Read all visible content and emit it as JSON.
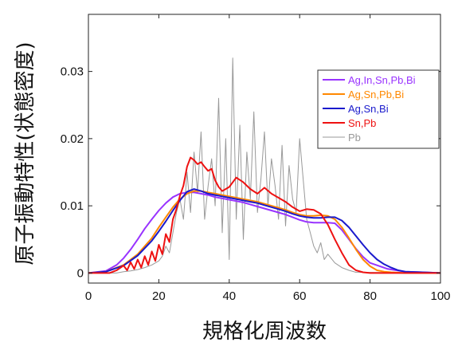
{
  "chart_data": {
    "type": "line",
    "xlabel": "規格化周波数",
    "ylabel": "原子振動特性(状態密度)",
    "xlim": [
      0,
      100
    ],
    "ylim": [
      -0.0015,
      0.0385
    ],
    "x_ticks": [
      0,
      20,
      40,
      60,
      80,
      100
    ],
    "y_ticks": [
      0,
      0.01,
      0.02,
      0.03
    ],
    "x_tick_labels": [
      "0",
      "20",
      "40",
      "60",
      "80",
      "100"
    ],
    "y_tick_labels": [
      "0",
      "0.01",
      "0.02",
      "0.03"
    ],
    "grid": false,
    "legend_position": "top-right",
    "series": [
      {
        "name": "Ag,In,Sn,Pb,Bi",
        "color": "#9933ff",
        "x": [
          0,
          5,
          8,
          10,
          12,
          14,
          16,
          18,
          20,
          22,
          24,
          26,
          28,
          30,
          32,
          34,
          36,
          38,
          40,
          42,
          44,
          46,
          48,
          50,
          52,
          54,
          56,
          58,
          60,
          62,
          64,
          66,
          68,
          70,
          72,
          74,
          76,
          78,
          80,
          85,
          90,
          95,
          100
        ],
        "y": [
          0,
          0.0003,
          0.0012,
          0.0022,
          0.0035,
          0.005,
          0.0066,
          0.008,
          0.0093,
          0.0104,
          0.0113,
          0.0118,
          0.012,
          0.012,
          0.0118,
          0.0116,
          0.0113,
          0.0111,
          0.0109,
          0.0107,
          0.0105,
          0.0102,
          0.0099,
          0.0096,
          0.0093,
          0.009,
          0.0087,
          0.0083,
          0.0079,
          0.0076,
          0.0075,
          0.0075,
          0.0075,
          0.0074,
          0.0064,
          0.005,
          0.0036,
          0.0024,
          0.0015,
          0.0006,
          0.0002,
          0.0001,
          0
        ]
      },
      {
        "name": "Ag,Sn,Pb,Bi",
        "color": "#ff8800",
        "x": [
          0,
          5,
          10,
          14,
          18,
          20,
          22,
          24,
          26,
          28,
          30,
          32,
          34,
          36,
          38,
          40,
          42,
          44,
          46,
          48,
          50,
          52,
          54,
          56,
          58,
          60,
          62,
          64,
          66,
          68,
          70,
          72,
          74,
          76,
          78,
          80,
          82,
          84,
          86,
          90,
          100
        ],
        "y": [
          0,
          0.0002,
          0.0012,
          0.0028,
          0.0052,
          0.0068,
          0.0083,
          0.0098,
          0.011,
          0.0118,
          0.0122,
          0.0122,
          0.012,
          0.0118,
          0.0116,
          0.0114,
          0.0112,
          0.011,
          0.0108,
          0.0106,
          0.0103,
          0.01,
          0.0097,
          0.0094,
          0.009,
          0.0087,
          0.0085,
          0.0085,
          0.0086,
          0.0085,
          0.008,
          0.0068,
          0.0052,
          0.0035,
          0.002,
          0.001,
          0.0004,
          0.0002,
          0.0001,
          0,
          0
        ]
      },
      {
        "name": "Ag,Sn,Bi",
        "color": "#1a1acc",
        "x": [
          0,
          5,
          10,
          14,
          18,
          20,
          22,
          24,
          26,
          28,
          30,
          32,
          34,
          36,
          38,
          40,
          42,
          44,
          46,
          48,
          50,
          52,
          54,
          56,
          58,
          60,
          62,
          64,
          66,
          68,
          70,
          72,
          74,
          76,
          78,
          80,
          82,
          84,
          86,
          88,
          90,
          95,
          100
        ],
        "y": [
          0,
          0.0002,
          0.0011,
          0.0026,
          0.0048,
          0.0062,
          0.0077,
          0.0093,
          0.0108,
          0.0121,
          0.0125,
          0.0122,
          0.0118,
          0.0116,
          0.0114,
          0.0112,
          0.011,
          0.0108,
          0.0106,
          0.0104,
          0.0101,
          0.0098,
          0.0095,
          0.0092,
          0.0088,
          0.0085,
          0.0083,
          0.0082,
          0.0082,
          0.0083,
          0.0083,
          0.0078,
          0.0068,
          0.0055,
          0.0042,
          0.003,
          0.002,
          0.0013,
          0.0008,
          0.0004,
          0.0002,
          0.0001,
          0
        ]
      },
      {
        "name": "Sn,Pb",
        "color": "#ee1111",
        "x": [
          0,
          6,
          8,
          10,
          11,
          12,
          13,
          14,
          15,
          16,
          17,
          18,
          19,
          20,
          21,
          22,
          23,
          24,
          25,
          26,
          27,
          28,
          29,
          30,
          31,
          32,
          33,
          34,
          35,
          36,
          37,
          38,
          40,
          42,
          44,
          46,
          48,
          50,
          52,
          54,
          56,
          58,
          60,
          62,
          64,
          66,
          68,
          70,
          72,
          74,
          76,
          78,
          80,
          85,
          100
        ],
        "y": [
          0,
          0,
          0.0004,
          0.0011,
          0.0004,
          0.0016,
          0.0006,
          0.002,
          0.0008,
          0.0025,
          0.0012,
          0.0032,
          0.0018,
          0.0042,
          0.0028,
          0.0058,
          0.0046,
          0.008,
          0.0095,
          0.0115,
          0.013,
          0.0158,
          0.0172,
          0.0168,
          0.0162,
          0.0165,
          0.0158,
          0.0152,
          0.0155,
          0.0138,
          0.0128,
          0.0122,
          0.0128,
          0.0142,
          0.0135,
          0.0125,
          0.0118,
          0.0127,
          0.0118,
          0.0112,
          0.0106,
          0.0098,
          0.0092,
          0.0095,
          0.0094,
          0.0088,
          0.0072,
          0.005,
          0.003,
          0.0012,
          0.0004,
          0.0001,
          0,
          0,
          0
        ]
      },
      {
        "name": "Pb",
        "color": "#999999",
        "x": [
          0,
          8,
          10,
          12,
          14,
          16,
          18,
          20,
          21,
          22,
          23,
          24,
          25,
          26,
          27,
          28,
          29,
          30,
          31,
          32,
          33,
          34,
          35,
          36,
          37,
          38,
          39,
          40,
          41,
          42,
          43,
          44,
          45,
          46,
          47,
          48,
          49,
          50,
          51,
          52,
          53,
          54,
          55,
          56,
          57,
          58,
          59,
          60,
          61,
          62,
          63,
          64,
          65,
          66,
          67,
          68,
          70,
          72,
          74,
          76,
          100
        ],
        "y": [
          0,
          0,
          0.0002,
          0.0003,
          0.0005,
          0.0008,
          0.0012,
          0.0018,
          0.0025,
          0.004,
          0.003,
          0.006,
          0.009,
          0.011,
          0.008,
          0.015,
          0.009,
          0.018,
          0.012,
          0.021,
          0.008,
          0.013,
          0.017,
          0.01,
          0.026,
          0.006,
          0.02,
          0.002,
          0.032,
          0.008,
          0.022,
          0.005,
          0.018,
          0.011,
          0.024,
          0.009,
          0.014,
          0.021,
          0.01,
          0.017,
          0.013,
          0.008,
          0.019,
          0.007,
          0.016,
          0.011,
          0.009,
          0.02,
          0.014,
          0.008,
          0.006,
          0.004,
          0.003,
          0.0045,
          0.002,
          0.0028,
          0.0015,
          0.0008,
          0.0004,
          0.0001,
          0
        ]
      }
    ]
  }
}
